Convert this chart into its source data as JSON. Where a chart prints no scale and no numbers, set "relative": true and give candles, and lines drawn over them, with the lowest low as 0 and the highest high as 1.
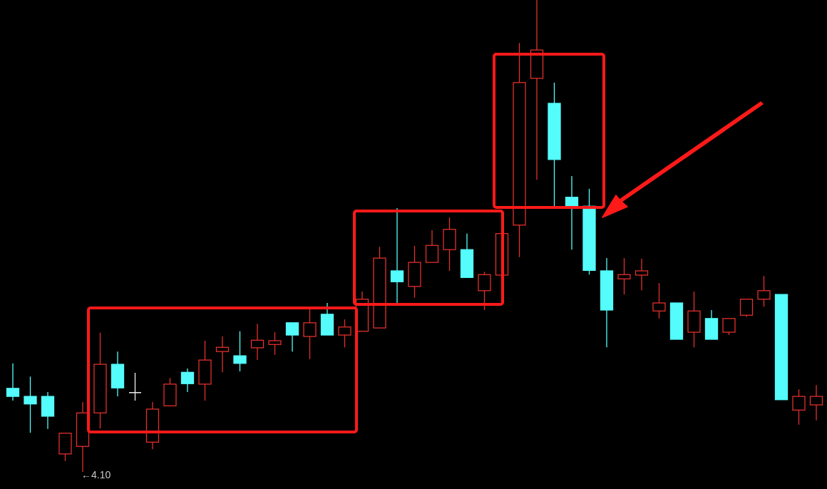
{
  "chart_data": {
    "type": "candlestick",
    "relative": true,
    "categories": [
      null,
      null,
      null,
      null,
      null,
      null,
      null,
      null,
      null,
      null,
      null,
      null,
      null,
      null,
      null,
      null,
      null,
      null,
      null,
      null,
      null,
      null,
      null,
      null,
      null,
      null,
      null,
      null,
      null,
      null,
      null,
      null,
      null,
      null,
      null,
      null,
      null,
      null,
      null,
      null,
      null,
      null,
      null,
      null,
      null,
      null,
      null
    ],
    "ohlc": [
      [
        0.177,
        0.23,
        0.151,
        0.16
      ],
      [
        0.16,
        0.202,
        0.083,
        0.144
      ],
      [
        0.16,
        0.169,
        0.091,
        0.118
      ],
      [
        0.038,
        0.082,
        0.023,
        0.082
      ],
      [
        0.054,
        0.148,
        0,
        0.125
      ],
      [
        0.125,
        0.295,
        0.092,
        0.228
      ],
      [
        0.228,
        0.255,
        0.16,
        0.178
      ],
      [
        0.168,
        0.21,
        0.151,
        0.168
      ],
      [
        0.063,
        0.148,
        0.048,
        0.133
      ],
      [
        0.14,
        0.199,
        0.14,
        0.186
      ],
      [
        0.211,
        0.219,
        0.169,
        0.187
      ],
      [
        0.186,
        0.278,
        0.151,
        0.237
      ],
      [
        0.255,
        0.287,
        0.211,
        0.264
      ],
      [
        0.246,
        0.298,
        0.213,
        0.23
      ],
      [
        0.263,
        0.314,
        0.237,
        0.279
      ],
      [
        0.27,
        0.296,
        0.248,
        0.278
      ],
      [
        0.316,
        0.316,
        0.255,
        0.29
      ],
      [
        0.287,
        0.347,
        0.239,
        0.316
      ],
      [
        0.334,
        0.358,
        0.29,
        0.29
      ],
      [
        0.29,
        0.323,
        0.264,
        0.307
      ],
      [
        0.298,
        0.382,
        0.298,
        0.366
      ],
      [
        0.305,
        0.477,
        0.305,
        0.453
      ],
      [
        0.426,
        0.559,
        0.358,
        0.403
      ],
      [
        0.393,
        0.479,
        0.369,
        0.444
      ],
      [
        0.444,
        0.512,
        0.444,
        0.48
      ],
      [
        0.471,
        0.539,
        0.426,
        0.514
      ],
      [
        0.471,
        0.505,
        0.412,
        0.412
      ],
      [
        0.384,
        0.424,
        0.343,
        0.418
      ],
      [
        0.417,
        0.505,
        0.417,
        0.505
      ],
      [
        0.523,
        0.909,
        0.455,
        0.825
      ],
      [
        0.834,
        1,
        0.619,
        0.894
      ],
      [
        0.781,
        0.825,
        0.562,
        0.662
      ],
      [
        0.582,
        0.627,
        0.471,
        0.563
      ],
      [
        0.563,
        0.6,
        0.418,
        0.427
      ],
      [
        0.426,
        0.453,
        0.264,
        0.343
      ],
      [
        0.409,
        0.453,
        0.376,
        0.418
      ],
      [
        0.417,
        0.452,
        0.385,
        0.426
      ],
      [
        0.341,
        0.4,
        0.325,
        0.358
      ],
      [
        0.358,
        0.358,
        0.281,
        0.281
      ],
      [
        0.296,
        0.382,
        0.264,
        0.341
      ],
      [
        0.325,
        0.343,
        0.281,
        0.281
      ],
      [
        0.296,
        0.325,
        0.29,
        0.325
      ],
      [
        0.332,
        0.366,
        0.328,
        0.366
      ],
      [
        0.366,
        0.415,
        0.35,
        0.384
      ],
      [
        0.376,
        0.376,
        0.153,
        0.153
      ],
      [
        0.131,
        0.175,
        0.1,
        0.16
      ],
      [
        0.142,
        0.184,
        0.109,
        0.16
      ]
    ],
    "colors": [
      "#54fcfc",
      "#54fcfc",
      "#54fcfc",
      "#e0302c",
      "#e0302c",
      "#e0302c",
      "#54fcfc",
      "#f0f0f0",
      "#e0302c",
      "#e0302c",
      "#54fcfc",
      "#e0302c",
      "#e0302c",
      "#54fcfc",
      "#e0302c",
      "#e0302c",
      "#54fcfc",
      "#e0302c",
      "#54fcfc",
      "#e0302c",
      "#e0302c",
      "#e0302c",
      "#54fcfc",
      "#e0302c",
      "#e0302c",
      "#e0302c",
      "#54fcfc",
      "#e0302c",
      "#e0302c",
      "#e0302c",
      "#e0302c",
      "#54fcfc",
      "#54fcfc",
      "#54fcfc",
      "#54fcfc",
      "#e0302c",
      "#e0302c",
      "#e0302c",
      "#54fcfc",
      "#e0302c",
      "#54fcfc",
      "#e0302c",
      "#e0302c",
      "#e0302c",
      "#54fcfc",
      "#e0302c",
      "#e0302c"
    ],
    "annotations": [
      "←4.10"
    ]
  }
}
